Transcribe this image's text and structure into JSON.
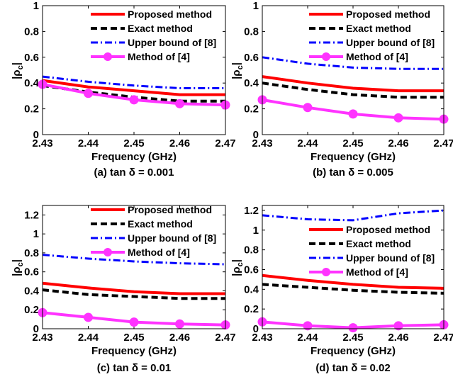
{
  "chart_data": [
    {
      "type": "line",
      "caption": "(a) tan δ = 0.001",
      "xlabel": "Frequency (GHz)",
      "ylabel": "|ρc|",
      "x": [
        2.43,
        2.44,
        2.45,
        2.46,
        2.47
      ],
      "x_ticks": [
        "2.43",
        "2.44",
        "2.45",
        "2.46",
        "2.47"
      ],
      "ylim": [
        0,
        1
      ],
      "y_ticks": [
        "0",
        "0.2",
        "0.4",
        "0.6",
        "0.8",
        "1"
      ],
      "legend_position": "top-right",
      "series": [
        {
          "name": "Proposed method",
          "color": "#ff0000",
          "style": "solid",
          "values": [
            0.42,
            0.37,
            0.34,
            0.31,
            0.31
          ]
        },
        {
          "name": "Exact method",
          "color": "#000000",
          "style": "dashed",
          "values": [
            0.38,
            0.33,
            0.29,
            0.26,
            0.26
          ]
        },
        {
          "name": "Upper bound of [8]",
          "color": "#0000ff",
          "style": "dashdot",
          "values": [
            0.45,
            0.41,
            0.38,
            0.36,
            0.36
          ]
        },
        {
          "name": "Method of [4]",
          "color": "#ff33ff",
          "style": "solid-marker",
          "values": [
            0.39,
            0.32,
            0.27,
            0.24,
            0.23
          ]
        }
      ]
    },
    {
      "type": "line",
      "caption": "(b) tan δ = 0.005",
      "xlabel": "Frequency (GHz)",
      "ylabel": "|ρc|",
      "x": [
        2.43,
        2.44,
        2.45,
        2.46,
        2.47
      ],
      "x_ticks": [
        "2.43",
        "2.44",
        "2.45",
        "2.46",
        "2.47"
      ],
      "ylim": [
        0,
        1
      ],
      "y_ticks": [
        "0",
        "0.2",
        "0.4",
        "0.6",
        "0.8",
        "1"
      ],
      "legend_position": "top-right",
      "series": [
        {
          "name": "Proposed method",
          "color": "#ff0000",
          "style": "solid",
          "values": [
            0.45,
            0.4,
            0.36,
            0.34,
            0.34
          ]
        },
        {
          "name": "Exact method",
          "color": "#000000",
          "style": "dashed",
          "values": [
            0.4,
            0.35,
            0.31,
            0.29,
            0.29
          ]
        },
        {
          "name": "Upper bound of [8]",
          "color": "#0000ff",
          "style": "dashdot",
          "values": [
            0.6,
            0.55,
            0.52,
            0.51,
            0.51
          ]
        },
        {
          "name": "Method of [4]",
          "color": "#ff33ff",
          "style": "solid-marker",
          "values": [
            0.27,
            0.21,
            0.16,
            0.13,
            0.12
          ]
        }
      ]
    },
    {
      "type": "line",
      "caption": "(c) tan δ = 0.01",
      "xlabel": "Frequency (GHz)",
      "ylabel": "|ρc|",
      "x": [
        2.43,
        2.44,
        2.45,
        2.46,
        2.47
      ],
      "x_ticks": [
        "2.43",
        "2.44",
        "2.45",
        "2.46",
        "2.47"
      ],
      "ylim": [
        0,
        1.3
      ],
      "y_ticks": [
        "0",
        "0.2",
        "0.4",
        "0.6",
        "0.8",
        "1",
        "1.2"
      ],
      "legend_position": "top-right",
      "series": [
        {
          "name": "Proposed method",
          "color": "#ff0000",
          "style": "solid",
          "values": [
            0.48,
            0.43,
            0.39,
            0.37,
            0.37
          ]
        },
        {
          "name": "Exact method",
          "color": "#000000",
          "style": "dashed",
          "values": [
            0.41,
            0.36,
            0.34,
            0.32,
            0.32
          ]
        },
        {
          "name": "Upper bound of [8]",
          "color": "#0000ff",
          "style": "dashdot",
          "values": [
            0.78,
            0.74,
            0.71,
            0.69,
            0.68
          ]
        },
        {
          "name": "Method of [4]",
          "color": "#ff33ff",
          "style": "solid-marker",
          "values": [
            0.17,
            0.12,
            0.07,
            0.05,
            0.04
          ]
        }
      ]
    },
    {
      "type": "line",
      "caption": "(d) tan δ = 0.02",
      "xlabel": "Frequency (GHz)",
      "ylabel": "|ρc|",
      "x": [
        2.43,
        2.44,
        2.45,
        2.46,
        2.47
      ],
      "x_ticks": [
        "2.43",
        "2.44",
        "2.45",
        "2.46",
        "2.47"
      ],
      "ylim": [
        0,
        1.25
      ],
      "y_ticks": [
        "0",
        "0.2",
        "0.4",
        "0.6",
        "0.8",
        "1",
        "1.2"
      ],
      "legend_position": "right",
      "series": [
        {
          "name": "Proposed method",
          "color": "#ff0000",
          "style": "solid",
          "values": [
            0.54,
            0.49,
            0.45,
            0.42,
            0.41
          ]
        },
        {
          "name": "Exact method",
          "color": "#000000",
          "style": "dashed",
          "values": [
            0.45,
            0.42,
            0.39,
            0.37,
            0.36
          ]
        },
        {
          "name": "Upper bound of [8]",
          "color": "#0000ff",
          "style": "dashdot",
          "values": [
            1.15,
            1.11,
            1.1,
            1.17,
            1.2
          ]
        },
        {
          "name": "Method of [4]",
          "color": "#ff33ff",
          "style": "solid-marker",
          "values": [
            0.07,
            0.03,
            0.01,
            0.03,
            0.04
          ]
        }
      ]
    }
  ]
}
